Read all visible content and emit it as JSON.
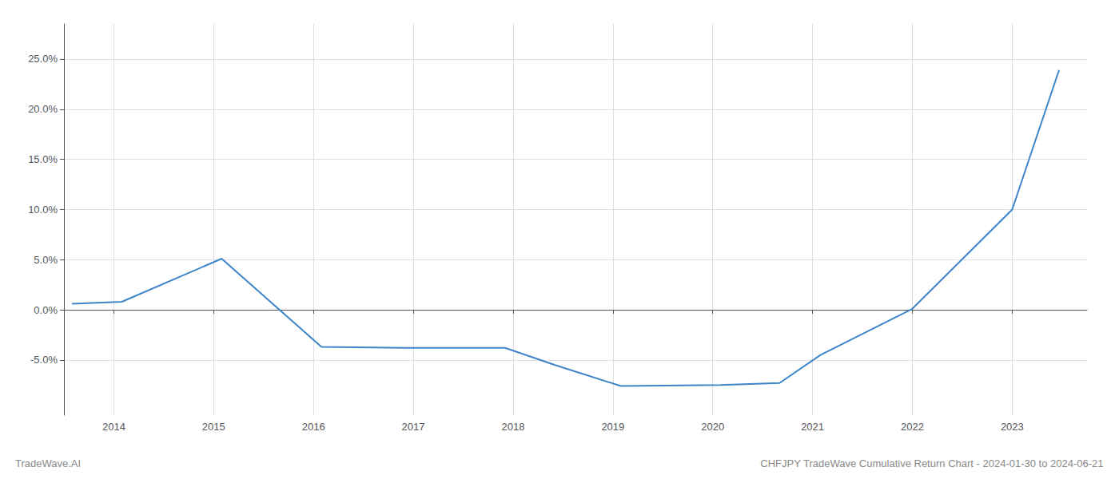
{
  "chart_data": {
    "type": "line",
    "title": "CHFJPY TradeWave Cumulative Return Chart - 2024-01-30 to 2024-06-21",
    "annotations": [
      "TradeWave.AI"
    ],
    "x": [
      2013.58,
      2014.08,
      2015.08,
      2016.08,
      2016.92,
      2017.92,
      2018.42,
      2019.08,
      2020.08,
      2020.67,
      2021.08,
      2022.0,
      2023.0,
      2023.47
    ],
    "values": [
      0.006,
      0.008,
      0.051,
      -0.037,
      -0.038,
      -0.038,
      -0.055,
      -0.076,
      -0.075,
      -0.073,
      -0.045,
      0.001,
      0.1,
      0.239
    ],
    "color": "#3d85c8",
    "xlim": [
      2013.5,
      2023.75
    ],
    "ylim": [
      -0.105,
      0.285
    ],
    "xticks": [
      2014,
      2015,
      2016,
      2017,
      2018,
      2019,
      2020,
      2021,
      2022,
      2023
    ],
    "yticks": [
      {
        "value": -0.05,
        "label": "-5.0%"
      },
      {
        "value": 0.0,
        "label": "0.0%"
      },
      {
        "value": 0.05,
        "label": "5.0%"
      },
      {
        "value": 0.1,
        "label": "10.0%"
      },
      {
        "value": 0.15,
        "label": "15.0%"
      },
      {
        "value": 0.2,
        "label": "20.0%"
      },
      {
        "value": 0.25,
        "label": "25.0%"
      }
    ],
    "grid": true
  }
}
